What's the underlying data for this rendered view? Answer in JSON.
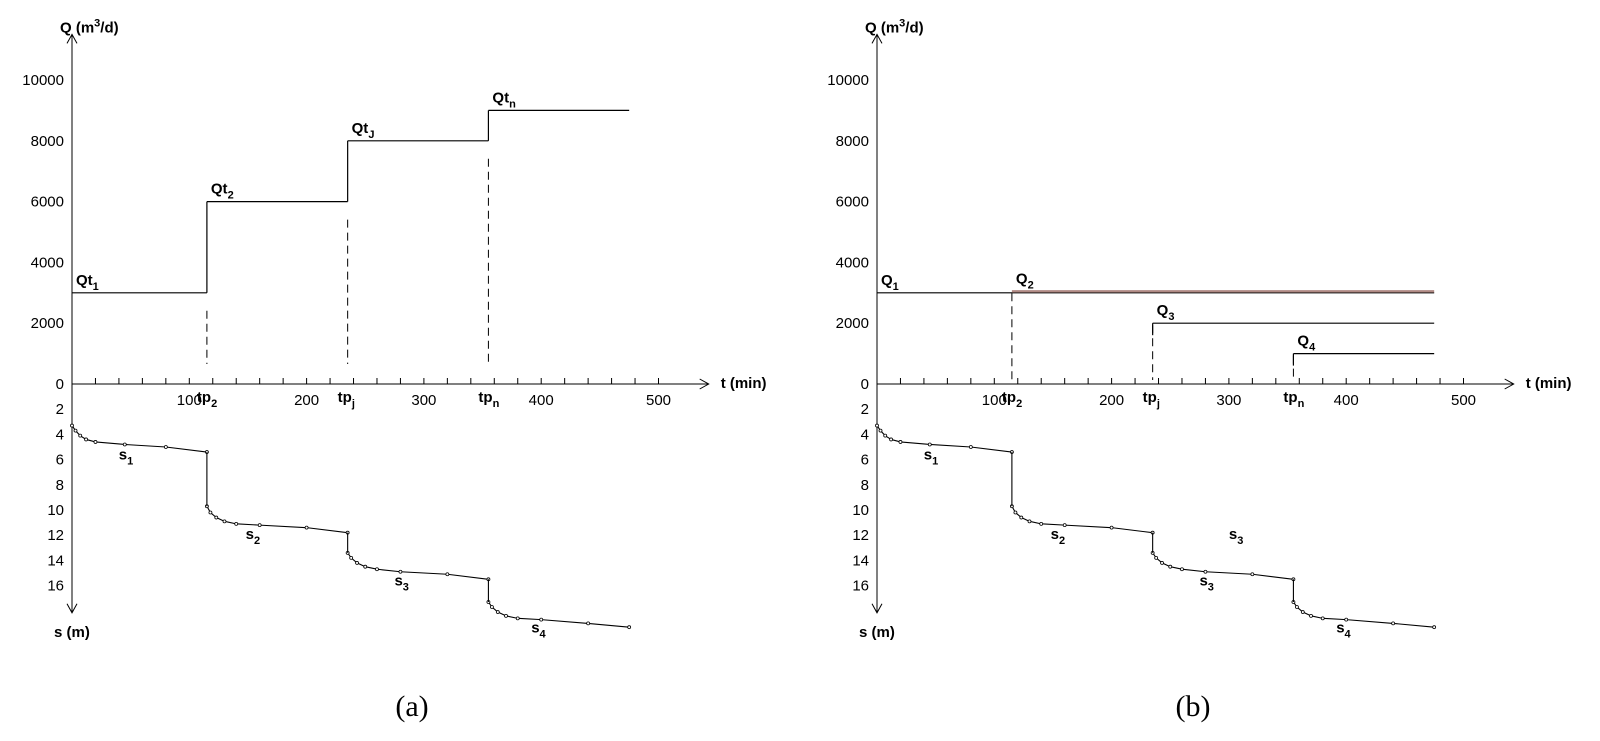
{
  "chart_data": [
    {
      "id": "a",
      "type": "line",
      "caption": "(a)",
      "q_axis": {
        "label": "Q (m³/d)",
        "label_pre": "Q (m",
        "label_sup": "3",
        "label_post": "/d)",
        "ticks": [
          0,
          2000,
          4000,
          6000,
          8000,
          10000
        ],
        "ylim": [
          0,
          11500
        ]
      },
      "t_axis": {
        "label": "t (min)",
        "ticks": [
          100,
          200,
          300,
          400,
          500
        ],
        "xlim": [
          0,
          530
        ]
      },
      "s_axis": {
        "label": "s (m)",
        "ticks": [
          2,
          4,
          6,
          8,
          10,
          12,
          14,
          16
        ],
        "ylim": [
          0,
          18
        ]
      },
      "tp_marks": [
        {
          "t": 115,
          "label": "tp",
          "sub": "2"
        },
        {
          "t": 235,
          "label": "tp",
          "sub": "j"
        },
        {
          "t": 355,
          "label": "tp",
          "sub": "n"
        }
      ],
      "q_series": [
        {
          "name": "Qt1",
          "base": "Qt",
          "sub": "1",
          "t_start": 0,
          "t_end": 115,
          "Q": 3000
        },
        {
          "name": "Qt2",
          "base": "Qt",
          "sub": "2",
          "t_start": 115,
          "t_end": 235,
          "Q": 6000
        },
        {
          "name": "QtJ",
          "base": "Qt",
          "sub": "J",
          "t_start": 235,
          "t_end": 355,
          "Q": 8000
        },
        {
          "name": "Qtn",
          "base": "Qt",
          "sub": "n",
          "t_start": 355,
          "t_end": 475,
          "Q": 9000
        }
      ],
      "drawdown_segments": [
        {
          "label": "s",
          "sub": "1",
          "points": [
            [
              0,
              3.3
            ],
            [
              3,
              3.7
            ],
            [
              7,
              4.1
            ],
            [
              12,
              4.4
            ],
            [
              20,
              4.6
            ],
            [
              45,
              4.8
            ],
            [
              80,
              5.0
            ],
            [
              115,
              5.4
            ]
          ]
        },
        {
          "label": "s",
          "sub": "2",
          "points": [
            [
              115,
              9.7
            ],
            [
              118,
              10.2
            ],
            [
              123,
              10.6
            ],
            [
              130,
              10.9
            ],
            [
              140,
              11.1
            ],
            [
              160,
              11.2
            ],
            [
              200,
              11.4
            ],
            [
              235,
              11.8
            ]
          ]
        },
        {
          "label": "s",
          "sub": "3",
          "points": [
            [
              235,
              13.4
            ],
            [
              238,
              13.8
            ],
            [
              243,
              14.2
            ],
            [
              250,
              14.5
            ],
            [
              260,
              14.7
            ],
            [
              280,
              14.9
            ],
            [
              320,
              15.1
            ],
            [
              355,
              15.5
            ]
          ]
        },
        {
          "label": "s",
          "sub": "4",
          "points": [
            [
              355,
              17.3
            ],
            [
              358,
              17.7
            ],
            [
              363,
              18.1
            ],
            [
              370,
              18.4
            ],
            [
              380,
              18.6
            ],
            [
              400,
              18.7
            ],
            [
              440,
              19.0
            ],
            [
              475,
              19.3
            ]
          ]
        }
      ]
    },
    {
      "id": "b",
      "type": "line",
      "caption": "(b)",
      "q_axis": {
        "label": "Q (m³/d)",
        "label_pre": "Q (m",
        "label_sup": "3",
        "label_post": "/d)",
        "ticks": [
          0,
          2000,
          4000,
          6000,
          8000,
          10000
        ],
        "ylim": [
          0,
          11500
        ]
      },
      "t_axis": {
        "label": "t (min)",
        "ticks": [
          100,
          200,
          300,
          400,
          500
        ],
        "xlim": [
          0,
          530
        ]
      },
      "s_axis": {
        "label": "s (m)",
        "ticks": [
          2,
          4,
          6,
          8,
          10,
          12,
          14,
          16
        ],
        "ylim": [
          0,
          18
        ]
      },
      "tp_marks": [
        {
          "t": 115,
          "label": "tp",
          "sub": "2"
        },
        {
          "t": 235,
          "label": "tp",
          "sub": "j"
        },
        {
          "t": 355,
          "label": "tp",
          "sub": "n"
        }
      ],
      "q_series": [
        {
          "name": "Q1",
          "base": "Q",
          "sub": "1",
          "t_start": 0,
          "t_end": 475,
          "Q": 3000,
          "color": "#000000"
        },
        {
          "name": "Q2",
          "base": "Q",
          "sub": "2",
          "t_start": 115,
          "t_end": 475,
          "Q": 3050,
          "color": "#b08a84"
        },
        {
          "name": "Q3",
          "base": "Q",
          "sub": "3",
          "t_start": 235,
          "t_end": 475,
          "Q": 2000,
          "color": "#000000"
        },
        {
          "name": "Q4",
          "base": "Q",
          "sub": "4",
          "t_start": 355,
          "t_end": 475,
          "Q": 1000,
          "color": "#000000"
        }
      ],
      "drawdown_segments": [
        {
          "label": "s",
          "sub": "1",
          "points": [
            [
              0,
              3.3
            ],
            [
              3,
              3.7
            ],
            [
              7,
              4.1
            ],
            [
              12,
              4.4
            ],
            [
              20,
              4.6
            ],
            [
              45,
              4.8
            ],
            [
              80,
              5.0
            ],
            [
              115,
              5.4
            ]
          ]
        },
        {
          "label": "s",
          "sub": "2",
          "points": [
            [
              115,
              9.7
            ],
            [
              118,
              10.2
            ],
            [
              123,
              10.6
            ],
            [
              130,
              10.9
            ],
            [
              140,
              11.1
            ],
            [
              160,
              11.2
            ],
            [
              200,
              11.4
            ],
            [
              235,
              11.8
            ]
          ]
        },
        {
          "label": "s",
          "sub": "3",
          "points": [
            [
              235,
              13.4
            ],
            [
              238,
              13.8
            ],
            [
              243,
              14.2
            ],
            [
              250,
              14.5
            ],
            [
              260,
              14.7
            ],
            [
              280,
              14.9
            ],
            [
              320,
              15.1
            ],
            [
              355,
              15.5
            ]
          ]
        },
        {
          "label": "s",
          "sub": "4",
          "points": [
            [
              355,
              17.3
            ],
            [
              358,
              17.7
            ],
            [
              363,
              18.1
            ],
            [
              370,
              18.4
            ],
            [
              380,
              18.6
            ],
            [
              400,
              18.7
            ],
            [
              440,
              19.0
            ],
            [
              475,
              19.3
            ]
          ]
        }
      ],
      "extra_labels": [
        {
          "label": "s",
          "sub": "3"
        }
      ]
    }
  ]
}
